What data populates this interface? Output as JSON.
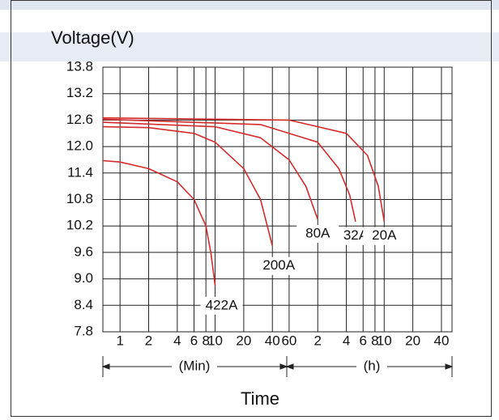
{
  "chart_data": {
    "type": "line",
    "y_label": "Voltage(V)",
    "x_label": "Time",
    "x_segments": [
      "(Min)",
      "(h)"
    ],
    "xscale": "log",
    "xlim": [
      0.66,
      3100
    ],
    "xticks": [
      1,
      2,
      4,
      6,
      8,
      10,
      20,
      40,
      60,
      {
        "value": 120,
        "label": "2"
      },
      {
        "value": 240,
        "label": "4"
      },
      {
        "value": 360,
        "label": "6"
      },
      {
        "value": 480,
        "label": "8"
      },
      {
        "value": 600,
        "label": "10"
      },
      {
        "value": 1200,
        "label": "20"
      },
      {
        "value": 2400,
        "label": "40"
      }
    ],
    "ylim": [
      7.8,
      13.8
    ],
    "yticks": [
      13.8,
      13.2,
      12.6,
      {
        "value": 12,
        "label": "12.0"
      },
      11.4,
      10.8,
      10.2,
      9.6,
      {
        "value": 9,
        "label": "9.0"
      },
      8.4,
      7.8
    ],
    "grid": true,
    "series": [
      {
        "name": "422A",
        "color": "#d42a2a",
        "x": [
          0.66,
          1,
          2,
          4,
          6,
          8,
          9,
          10
        ],
        "values": [
          11.68,
          11.65,
          11.5,
          11.2,
          10.8,
          10.2,
          9.6,
          8.85
        ]
      },
      {
        "name": "200A",
        "color": "#d42a2a",
        "x": [
          0.66,
          2,
          6,
          10,
          20,
          30,
          40
        ],
        "values": [
          12.45,
          12.43,
          12.3,
          12.1,
          11.5,
          10.8,
          9.75
        ]
      },
      {
        "name": "80A",
        "color": "#d42a2a",
        "x": [
          0.66,
          10,
          30,
          60,
          90,
          120
        ],
        "values": [
          12.55,
          12.45,
          12.2,
          11.7,
          11.1,
          10.35
        ]
      },
      {
        "name": "32A",
        "color": "#d42a2a",
        "x": [
          0.66,
          30,
          120,
          200,
          260,
          300
        ],
        "values": [
          12.62,
          12.5,
          12.1,
          11.5,
          10.9,
          10.3
        ]
      },
      {
        "name": "20A",
        "color": "#d42a2a",
        "x": [
          0.66,
          60,
          240,
          400,
          520,
          600
        ],
        "values": [
          12.65,
          12.6,
          12.3,
          11.8,
          11.1,
          10.3
        ]
      }
    ]
  }
}
